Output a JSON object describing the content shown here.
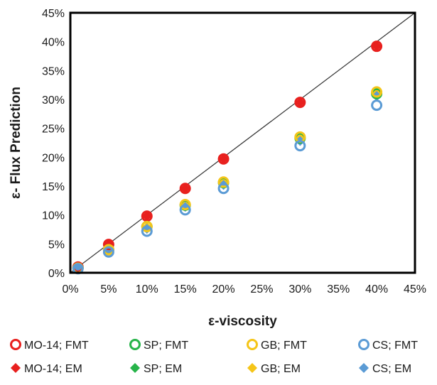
{
  "chart_data": {
    "type": "scatter",
    "xlabel": "ε-viscosity",
    "ylabel": "ε- Flux Prediction",
    "xlim": [
      0,
      45
    ],
    "ylim": [
      0,
      45
    ],
    "x_ticks": [
      "0%",
      "5%",
      "10%",
      "15%",
      "20%",
      "25%",
      "30%",
      "35%",
      "40%",
      "45%"
    ],
    "y_ticks": [
      "0%",
      "5%",
      "10%",
      "15%",
      "20%",
      "25%",
      "30%",
      "35%",
      "40%",
      "45%"
    ],
    "reference_line": {
      "from": [
        0,
        0
      ],
      "to": [
        45,
        45
      ],
      "color": "#333333"
    },
    "grid": false,
    "legend_position": "bottom",
    "series": [
      {
        "name": "MO-14; FMT",
        "marker": "open-circle",
        "color": "#e8201e",
        "x": [
          1,
          5,
          10,
          15,
          20,
          30,
          40
        ],
        "y": [
          1,
          4.9,
          9.8,
          14.6,
          19.7,
          29.5,
          39.2
        ]
      },
      {
        "name": "SP; FMT",
        "marker": "open-circle",
        "color": "#27b44a",
        "x": [
          1,
          5,
          10,
          15,
          20,
          30,
          40
        ],
        "y": [
          0.8,
          4.0,
          8.0,
          11.7,
          15.6,
          23.3,
          31.0
        ]
      },
      {
        "name": "GB; FMT",
        "marker": "open-circle",
        "color": "#f5c518",
        "x": [
          1,
          5,
          10,
          15,
          20,
          30,
          40
        ],
        "y": [
          0.8,
          4.0,
          8.0,
          11.8,
          15.7,
          23.5,
          31.3
        ]
      },
      {
        "name": "CS; FMT",
        "marker": "open-circle",
        "color": "#5b9bd5",
        "x": [
          1,
          5,
          10,
          15,
          20,
          30,
          40
        ],
        "y": [
          0.7,
          3.6,
          7.2,
          10.9,
          14.6,
          22.0,
          29.0
        ]
      },
      {
        "name": "MO-14; EM",
        "marker": "filled-diamond",
        "color": "#e8201e",
        "x": [
          1,
          5,
          10,
          15,
          20,
          30,
          40
        ],
        "y": [
          1,
          4.9,
          9.8,
          14.6,
          19.7,
          29.5,
          39.2
        ]
      },
      {
        "name": "SP; EM",
        "marker": "filled-diamond",
        "color": "#27b44a",
        "x": [
          1,
          5,
          10,
          15,
          20,
          30,
          40
        ],
        "y": [
          0.8,
          4.0,
          7.8,
          11.7,
          15.5,
          23.2,
          30.8
        ]
      },
      {
        "name": "GB; EM",
        "marker": "filled-diamond",
        "color": "#f5c518",
        "x": [
          1,
          5,
          10,
          15,
          20,
          30,
          40
        ],
        "y": [
          0.8,
          4.0,
          7.9,
          11.8,
          15.6,
          23.4,
          31.2
        ]
      },
      {
        "name": "CS; EM",
        "marker": "filled-diamond",
        "color": "#5b9bd5",
        "x": [
          1,
          5,
          10,
          15,
          20,
          30,
          40
        ],
        "y": [
          0.8,
          3.8,
          7.6,
          11.4,
          15.2,
          22.8,
          30.6
        ]
      }
    ]
  }
}
